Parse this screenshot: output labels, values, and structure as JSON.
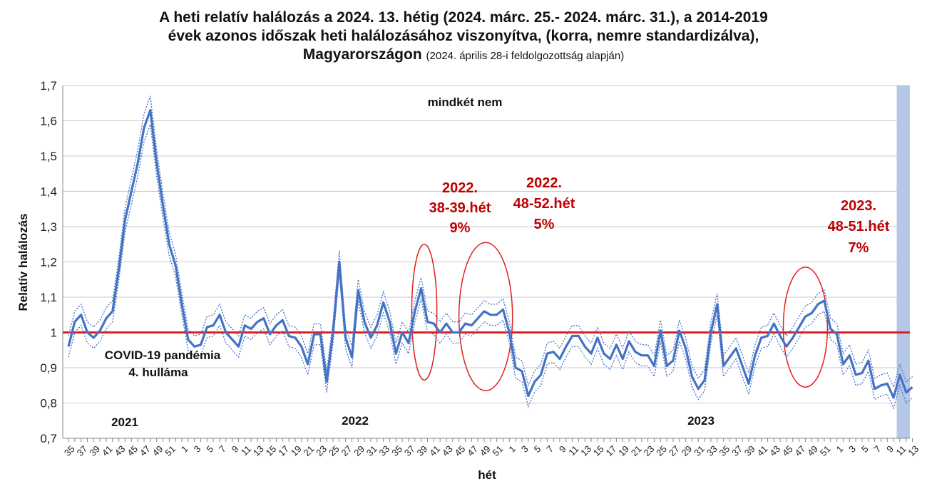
{
  "title": {
    "line1": "A heti relatív halálozás a 2024. 13. hétig (2024. márc. 25.- 2024. márc. 31.), a 2014-2019",
    "line2": "évek azonos időszak heti halálozásához viszonyítva, (korra, nemre standardizálva),",
    "line3_bold": "Magyarországon",
    "line3_note": "(2024. április 28-i feldolgozottság alapján)"
  },
  "chart_data": {
    "type": "line",
    "xlabel": "hét",
    "ylabel": "Relatív halálozás",
    "ylim": [
      0.7,
      1.7
    ],
    "y_ticks": [
      "0,7",
      "0,8",
      "0,9",
      "1",
      "1,1",
      "1,2",
      "1,3",
      "1,4",
      "1,5",
      "1,6",
      "1,7"
    ],
    "x_tick_labels": [
      "35",
      "37",
      "39",
      "41",
      "43",
      "45",
      "47",
      "49",
      "51",
      "1",
      "3",
      "5",
      "7",
      "9",
      "11",
      "13",
      "15",
      "17",
      "19",
      "21",
      "23",
      "25",
      "27",
      "29",
      "31",
      "33",
      "35",
      "37",
      "39",
      "41",
      "43",
      "45",
      "47",
      "49",
      "51",
      "1",
      "3",
      "5",
      "7",
      "9",
      "11",
      "13",
      "15",
      "17",
      "19",
      "21",
      "23",
      "25",
      "27",
      "29",
      "31",
      "33",
      "35",
      "37",
      "39",
      "41",
      "43",
      "45",
      "47",
      "49",
      "51",
      "1",
      "3",
      "5",
      "7",
      "9",
      "11",
      "13"
    ],
    "grid": "horizontal",
    "reference_line": {
      "y": 1,
      "color": "#e02020"
    },
    "highlight_color": "#b4c7e7",
    "series": [
      {
        "color": "#4472c4",
        "style": "solid",
        "values": [
          0.96,
          1.03,
          1.05,
          1.0,
          0.985,
          1.005,
          1.04,
          1.06,
          1.18,
          1.32,
          1.4,
          1.48,
          1.58,
          1.63,
          1.48,
          1.36,
          1.25,
          1.19,
          1.08,
          0.98,
          0.96,
          0.965,
          1.015,
          1.02,
          1.05,
          1.0,
          0.98,
          0.96,
          1.02,
          1.01,
          1.03,
          1.04,
          0.995,
          1.02,
          1.035,
          0.99,
          0.985,
          0.96,
          0.91,
          0.995,
          0.995,
          0.86,
          1.0,
          1.2,
          0.985,
          0.93,
          1.12,
          1.03,
          0.985,
          1.02,
          1.085,
          1.03,
          0.94,
          1.0,
          0.97,
          1.06,
          1.125,
          1.03,
          1.025,
          1.0,
          1.025,
          1.0,
          1.0,
          1.025,
          1.02,
          1.04,
          1.06,
          1.05,
          1.05,
          1.065,
          1.0,
          0.9,
          0.89,
          0.82,
          0.86,
          0.88,
          0.94,
          0.945,
          0.925,
          0.96,
          0.99,
          0.99,
          0.96,
          0.94,
          0.985,
          0.94,
          0.925,
          0.965,
          0.925,
          0.975,
          0.945,
          0.935,
          0.935,
          0.905,
          1.005,
          0.905,
          0.92,
          1.005,
          0.955,
          0.875,
          0.84,
          0.865,
          1.0,
          1.08,
          0.905,
          0.93,
          0.955,
          0.905,
          0.855,
          0.935,
          0.985,
          0.99,
          1.025,
          0.99,
          0.96,
          0.985,
          1.015,
          1.045,
          1.055,
          1.08,
          1.09,
          1.01,
          0.995,
          0.91,
          0.935,
          0.88,
          0.885,
          0.92,
          0.84,
          0.85,
          0.855,
          0.815,
          0.88,
          0.83,
          0.845
        ]
      }
    ],
    "annotations": {
      "both_sexes": "mindkét nem",
      "covid_line1": "COVID-19 pandémia",
      "covid_line2": "4. hulláma",
      "year_2021": "2021",
      "year_2022": "2022",
      "year_2023": "2023",
      "ann1": [
        "2022.",
        "38-39.hét",
        "9%"
      ],
      "ann2": [
        "2022.",
        "48-52.hét",
        "5%"
      ],
      "ann3": [
        "2023.",
        "48-51.hét",
        "7%"
      ]
    }
  }
}
